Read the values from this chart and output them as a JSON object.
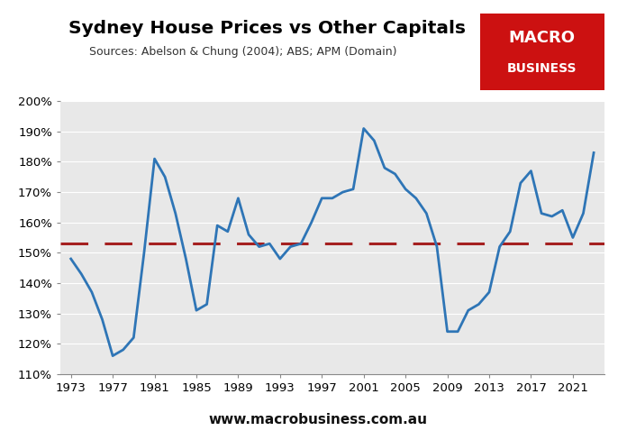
{
  "title": "Sydney House Prices vs Other Capitals",
  "subtitle": "Sources: Abelson & Chung (2004); ABS; APM (Domain)",
  "line_color": "#2E75B6",
  "dashed_line_color": "#A52020",
  "dashed_line_value": 153,
  "background_color": "#E8E8E8",
  "ylim": [
    110,
    200
  ],
  "yticks": [
    110,
    120,
    130,
    140,
    150,
    160,
    170,
    180,
    190,
    200
  ],
  "xticks": [
    1973,
    1977,
    1981,
    1985,
    1989,
    1993,
    1997,
    2001,
    2005,
    2009,
    2013,
    2017,
    2021
  ],
  "xlim_min": 1972,
  "xlim_max": 2024,
  "website": "www.macrobusiness.com.au",
  "macro_box_color": "#CC1111",
  "years": [
    1973,
    1974,
    1975,
    1976,
    1977,
    1978,
    1979,
    1980,
    1981,
    1982,
    1983,
    1984,
    1985,
    1986,
    1987,
    1988,
    1989,
    1990,
    1991,
    1992,
    1993,
    1994,
    1995,
    1996,
    1997,
    1998,
    1999,
    2000,
    2001,
    2002,
    2003,
    2004,
    2005,
    2006,
    2007,
    2008,
    2009,
    2010,
    2011,
    2012,
    2013,
    2014,
    2015,
    2016,
    2017,
    2018,
    2019,
    2020,
    2021,
    2022,
    2023
  ],
  "values": [
    148,
    143,
    137,
    128,
    116,
    118,
    122,
    150,
    181,
    175,
    163,
    148,
    131,
    133,
    159,
    157,
    168,
    156,
    152,
    153,
    148,
    152,
    153,
    160,
    168,
    168,
    170,
    171,
    191,
    187,
    178,
    176,
    171,
    168,
    163,
    152,
    124,
    124,
    131,
    133,
    137,
    152,
    157,
    173,
    177,
    163,
    162,
    164,
    155,
    163,
    183
  ]
}
